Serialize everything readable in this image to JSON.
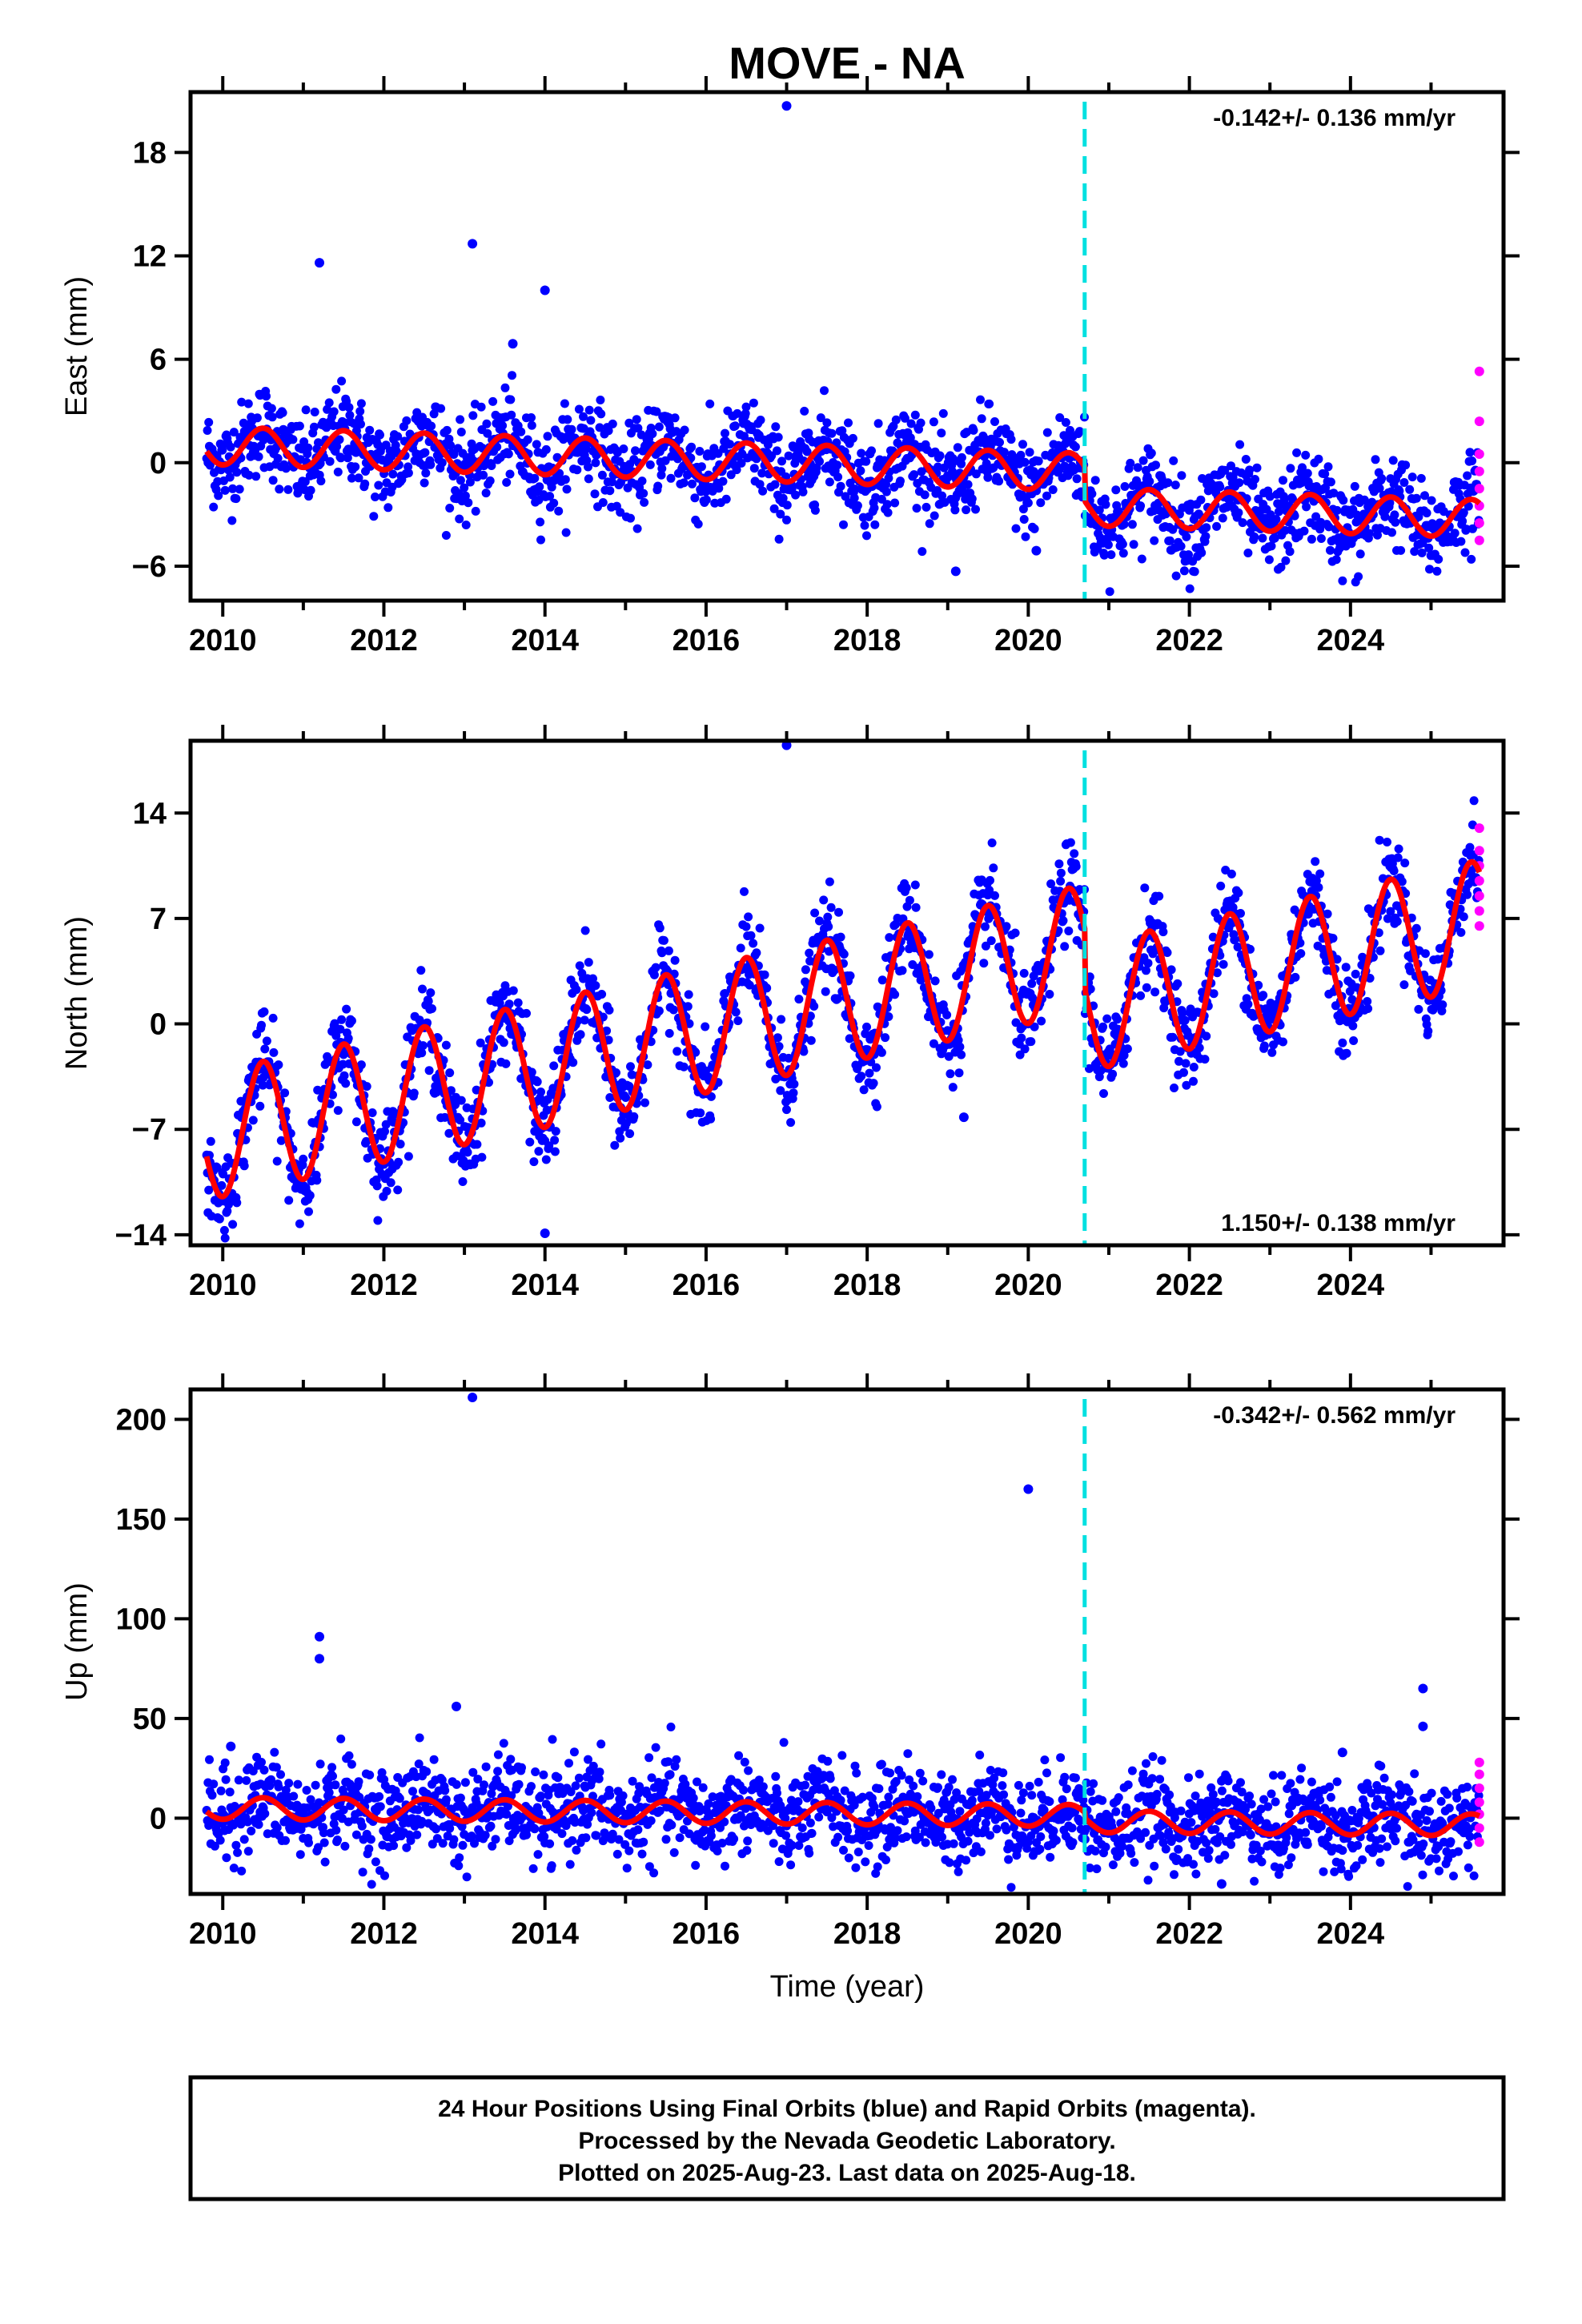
{
  "title": "MOVE - NA",
  "colors": {
    "final_orbits": "#0000ff",
    "rapid_orbits": "#ff00ff",
    "model_fit": "#ff0000",
    "event_line": "#00e0e0",
    "frame": "#000000"
  },
  "chart_data": [
    {
      "type": "scatter",
      "ylabel": "East (mm)",
      "xlabel": "",
      "xlim": [
        2009.6,
        2025.9
      ],
      "ylim": [
        -8,
        21.5
      ],
      "x_ticks": [
        2010,
        2012,
        2014,
        2016,
        2018,
        2020,
        2022,
        2024
      ],
      "y_ticks": [
        -6,
        0,
        6,
        12,
        18
      ],
      "rate_label": "-0.142+/- 0.136 mm/yr",
      "rate_position": "top-right",
      "event_line_x": 2020.7,
      "model": {
        "start": 2009.8,
        "end": 2025.6,
        "offset": 1.0,
        "trend": -0.142,
        "seasonal_amplitude": 1.1,
        "annual_cycle_years": 1.0,
        "break_at": 2020.7,
        "offset_after_break": -2.0
      },
      "outliers": [
        [
          2017.0,
          20.7
        ],
        [
          2013.1,
          12.7
        ],
        [
          2011.2,
          11.6
        ],
        [
          2014.0,
          10.0
        ],
        [
          2013.6,
          6.9
        ],
        [
          2019.1,
          -6.3
        ],
        [
          2020.1,
          -5.1
        ]
      ],
      "rapid_points": [
        [
          2025.6,
          5.3
        ],
        [
          2025.6,
          2.4
        ],
        [
          2025.6,
          0.5
        ],
        [
          2025.6,
          -0.5
        ],
        [
          2025.6,
          -1.5
        ],
        [
          2025.6,
          -2.5
        ],
        [
          2025.6,
          -3.5
        ],
        [
          2025.6,
          -4.5
        ]
      ]
    },
    {
      "type": "scatter",
      "ylabel": "North (mm)",
      "xlabel": "",
      "xlim": [
        2009.6,
        2025.9
      ],
      "ylim": [
        -14.7,
        18.8
      ],
      "x_ticks": [
        2010,
        2012,
        2014,
        2016,
        2018,
        2020,
        2022,
        2024
      ],
      "y_ticks": [
        -14,
        -7,
        0,
        7,
        14
      ],
      "rate_label": "1.150+/- 0.138 mm/yr",
      "rate_position": "bottom-right",
      "event_line_x": 2020.7,
      "model": {
        "start": 2009.8,
        "end": 2025.6,
        "offset": -7.5,
        "trend": 1.15,
        "seasonal_amplitude": 4.2,
        "annual_cycle_years": 1.0,
        "break_at": 2020.7,
        "offset_after_break": -4.0
      },
      "outliers": [
        [
          2017.0,
          18.5
        ],
        [
          2014.0,
          -13.9
        ],
        [
          2019.2,
          -6.2
        ]
      ],
      "rapid_points": [
        [
          2025.6,
          13.0
        ],
        [
          2025.6,
          11.5
        ],
        [
          2025.6,
          10.5
        ],
        [
          2025.6,
          9.5
        ],
        [
          2025.6,
          8.5
        ],
        [
          2025.6,
          7.5
        ],
        [
          2025.6,
          6.5
        ]
      ]
    },
    {
      "type": "scatter",
      "ylabel": "Up (mm)",
      "xlabel": "Time (year)",
      "xlim": [
        2009.6,
        2025.9
      ],
      "ylim": [
        -38,
        215
      ],
      "x_ticks": [
        2010,
        2012,
        2014,
        2016,
        2018,
        2020,
        2022,
        2024
      ],
      "y_ticks": [
        0,
        50,
        100,
        150,
        200
      ],
      "rate_label": "-0.342+/- 0.562 mm/yr",
      "rate_position": "top-right",
      "event_line_x": 2020.7,
      "model": {
        "start": 2009.8,
        "end": 2025.6,
        "offset": 5.0,
        "trend": -0.342,
        "seasonal_amplitude": 5.5,
        "annual_cycle_years": 1.0,
        "break_at": 2020.7,
        "offset_after_break": -3.0
      },
      "outliers": [
        [
          2013.1,
          211
        ],
        [
          2020.0,
          165
        ],
        [
          2011.2,
          91
        ],
        [
          2011.2,
          80
        ],
        [
          2024.9,
          65
        ],
        [
          2012.9,
          56
        ],
        [
          2024.9,
          46
        ],
        [
          2023.9,
          33
        ],
        [
          2010.1,
          36
        ],
        [
          2022.4,
          -33
        ]
      ],
      "rapid_points": [
        [
          2025.6,
          28
        ],
        [
          2025.6,
          22
        ],
        [
          2025.6,
          15
        ],
        [
          2025.6,
          8
        ],
        [
          2025.6,
          2
        ],
        [
          2025.6,
          -5
        ],
        [
          2025.6,
          -12
        ]
      ]
    }
  ],
  "footer": {
    "line1": "24 Hour Positions Using Final Orbits (blue) and Rapid Orbits (magenta).",
    "line2": "Processed by the Nevada Geodetic Laboratory.",
    "line3": "Plotted on 2025-Aug-23. Last data on 2025-Aug-18."
  }
}
